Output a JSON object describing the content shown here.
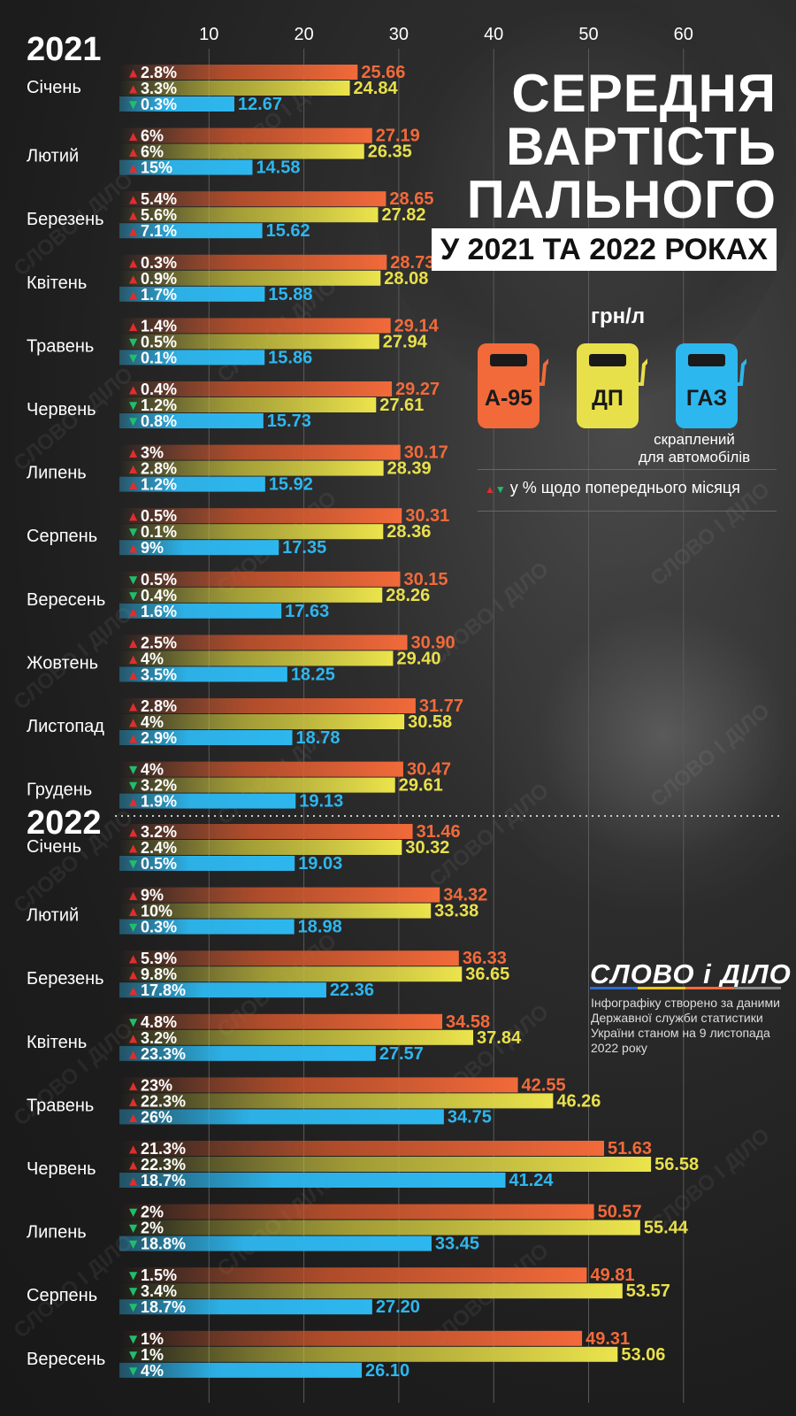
{
  "title": {
    "line1": "СЕРЕДНЯ",
    "line2": "ВАРТІСТЬ",
    "line3": "ПАЛЬНОГО",
    "subtitle": "У 2021 ТА 2022 РОКАХ"
  },
  "unit": "грн/л",
  "legend": {
    "fuels": [
      {
        "label": "А-95",
        "color": "#f26a3a",
        "icon": "fuel-pump-icon"
      },
      {
        "label": "ДП",
        "color": "#e8e04a",
        "icon": "fuel-pump-icon"
      },
      {
        "label": "ГАЗ",
        "color": "#2db7ef",
        "icon": "fuel-pump-icon"
      }
    ],
    "lpg_note_line1": "скраплений",
    "lpg_note_line2": "для автомобілів",
    "change_note": "у % щодо попереднього місяця"
  },
  "brand": {
    "logo": "СЛОВО і ДІЛО",
    "watermark": "СЛОВО І ДІЛО"
  },
  "source_note": "Інфографіку створено за даними Державної служби статистики України станом на 9 листопада 2022 року",
  "colors": {
    "a95": "#f26a3a",
    "dp": "#e8e04a",
    "gas": "#2db7ef",
    "up": "#e02d2d",
    "down": "#1fbf6a"
  },
  "chart_data": {
    "type": "bar",
    "orientation": "horizontal",
    "x_ticks": [
      10,
      20,
      30,
      40,
      50,
      60
    ],
    "xlim": [
      0,
      70
    ],
    "unit": "грн/л",
    "series_names": [
      "А-95",
      "ДП",
      "ГАЗ"
    ],
    "years": [
      {
        "year": "2021",
        "months": [
          {
            "month": "Січень",
            "values": [
              "25.66",
              "24.84",
              "12.67"
            ],
            "changes": [
              {
                "dir": "up",
                "pct": "2.8%"
              },
              {
                "dir": "up",
                "pct": "3.3%"
              },
              {
                "dir": "down",
                "pct": "0.3%"
              }
            ]
          },
          {
            "month": "Лютий",
            "values": [
              "27.19",
              "26.35",
              "14.58"
            ],
            "changes": [
              {
                "dir": "up",
                "pct": "6%"
              },
              {
                "dir": "up",
                "pct": "6%"
              },
              {
                "dir": "up",
                "pct": "15%"
              }
            ]
          },
          {
            "month": "Березень",
            "values": [
              "28.65",
              "27.82",
              "15.62"
            ],
            "changes": [
              {
                "dir": "up",
                "pct": "5.4%"
              },
              {
                "dir": "up",
                "pct": "5.6%"
              },
              {
                "dir": "up",
                "pct": "7.1%"
              }
            ]
          },
          {
            "month": "Квітень",
            "values": [
              "28.73",
              "28.08",
              "15.88"
            ],
            "changes": [
              {
                "dir": "up",
                "pct": "0.3%"
              },
              {
                "dir": "up",
                "pct": "0.9%"
              },
              {
                "dir": "up",
                "pct": "1.7%"
              }
            ]
          },
          {
            "month": "Травень",
            "values": [
              "29.14",
              "27.94",
              "15.86"
            ],
            "changes": [
              {
                "dir": "up",
                "pct": "1.4%"
              },
              {
                "dir": "down",
                "pct": "0.5%"
              },
              {
                "dir": "down",
                "pct": "0.1%"
              }
            ]
          },
          {
            "month": "Червень",
            "values": [
              "29.27",
              "27.61",
              "15.73"
            ],
            "changes": [
              {
                "dir": "up",
                "pct": "0.4%"
              },
              {
                "dir": "down",
                "pct": "1.2%"
              },
              {
                "dir": "down",
                "pct": "0.8%"
              }
            ]
          },
          {
            "month": "Липень",
            "values": [
              "30.17",
              "28.39",
              "15.92"
            ],
            "changes": [
              {
                "dir": "up",
                "pct": "3%"
              },
              {
                "dir": "up",
                "pct": "2.8%"
              },
              {
                "dir": "up",
                "pct": "1.2%"
              }
            ]
          },
          {
            "month": "Серпень",
            "values": [
              "30.31",
              "28.36",
              "17.35"
            ],
            "changes": [
              {
                "dir": "up",
                "pct": "0.5%"
              },
              {
                "dir": "down",
                "pct": "0.1%"
              },
              {
                "dir": "up",
                "pct": "9%"
              }
            ]
          },
          {
            "month": "Вересень",
            "values": [
              "30.15",
              "28.26",
              "17.63"
            ],
            "changes": [
              {
                "dir": "down",
                "pct": "0.5%"
              },
              {
                "dir": "down",
                "pct": "0.4%"
              },
              {
                "dir": "up",
                "pct": "1.6%"
              }
            ]
          },
          {
            "month": "Жовтень",
            "values": [
              "30.90",
              "29.40",
              "18.25"
            ],
            "changes": [
              {
                "dir": "up",
                "pct": "2.5%"
              },
              {
                "dir": "up",
                "pct": "4%"
              },
              {
                "dir": "up",
                "pct": "3.5%"
              }
            ]
          },
          {
            "month": "Листопад",
            "values": [
              "31.77",
              "30.58",
              "18.78"
            ],
            "changes": [
              {
                "dir": "up",
                "pct": "2.8%"
              },
              {
                "dir": "up",
                "pct": "4%"
              },
              {
                "dir": "up",
                "pct": "2.9%"
              }
            ]
          },
          {
            "month": "Грудень",
            "values": [
              "30.47",
              "29.61",
              "19.13"
            ],
            "changes": [
              {
                "dir": "down",
                "pct": "4%"
              },
              {
                "dir": "down",
                "pct": "3.2%"
              },
              {
                "dir": "up",
                "pct": "1.9%"
              }
            ]
          }
        ]
      },
      {
        "year": "2022",
        "months": [
          {
            "month": "Січень",
            "values": [
              "31.46",
              "30.32",
              "19.03"
            ],
            "changes": [
              {
                "dir": "up",
                "pct": "3.2%"
              },
              {
                "dir": "up",
                "pct": "2.4%"
              },
              {
                "dir": "down",
                "pct": "0.5%"
              }
            ]
          },
          {
            "month": "Лютий",
            "values": [
              "34.32",
              "33.38",
              "18.98"
            ],
            "changes": [
              {
                "dir": "up",
                "pct": "9%"
              },
              {
                "dir": "up",
                "pct": "10%"
              },
              {
                "dir": "down",
                "pct": "0.3%"
              }
            ]
          },
          {
            "month": "Березень",
            "values": [
              "36.33",
              "36.65",
              "22.36"
            ],
            "changes": [
              {
                "dir": "up",
                "pct": "5.9%"
              },
              {
                "dir": "up",
                "pct": "9.8%"
              },
              {
                "dir": "up",
                "pct": "17.8%"
              }
            ]
          },
          {
            "month": "Квітень",
            "values": [
              "34.58",
              "37.84",
              "27.57"
            ],
            "changes": [
              {
                "dir": "down",
                "pct": "4.8%"
              },
              {
                "dir": "up",
                "pct": "3.2%"
              },
              {
                "dir": "up",
                "pct": "23.3%"
              }
            ]
          },
          {
            "month": "Травень",
            "values": [
              "42.55",
              "46.26",
              "34.75"
            ],
            "changes": [
              {
                "dir": "up",
                "pct": "23%"
              },
              {
                "dir": "up",
                "pct": "22.3%"
              },
              {
                "dir": "up",
                "pct": "26%"
              }
            ]
          },
          {
            "month": "Червень",
            "values": [
              "51.63",
              "56.58",
              "41.24"
            ],
            "changes": [
              {
                "dir": "up",
                "pct": "21.3%"
              },
              {
                "dir": "up",
                "pct": "22.3%"
              },
              {
                "dir": "up",
                "pct": "18.7%"
              }
            ]
          },
          {
            "month": "Липень",
            "values": [
              "50.57",
              "55.44",
              "33.45"
            ],
            "changes": [
              {
                "dir": "down",
                "pct": "2%"
              },
              {
                "dir": "down",
                "pct": "2%"
              },
              {
                "dir": "down",
                "pct": "18.8%"
              }
            ]
          },
          {
            "month": "Серпень",
            "values": [
              "49.81",
              "53.57",
              "27.20"
            ],
            "changes": [
              {
                "dir": "down",
                "pct": "1.5%"
              },
              {
                "dir": "down",
                "pct": "3.4%"
              },
              {
                "dir": "down",
                "pct": "18.7%"
              }
            ]
          },
          {
            "month": "Вересень",
            "values": [
              "49.31",
              "53.06",
              "26.10"
            ],
            "changes": [
              {
                "dir": "down",
                "pct": "1%"
              },
              {
                "dir": "down",
                "pct": "1%"
              },
              {
                "dir": "down",
                "pct": "4%"
              }
            ]
          }
        ]
      }
    ]
  }
}
